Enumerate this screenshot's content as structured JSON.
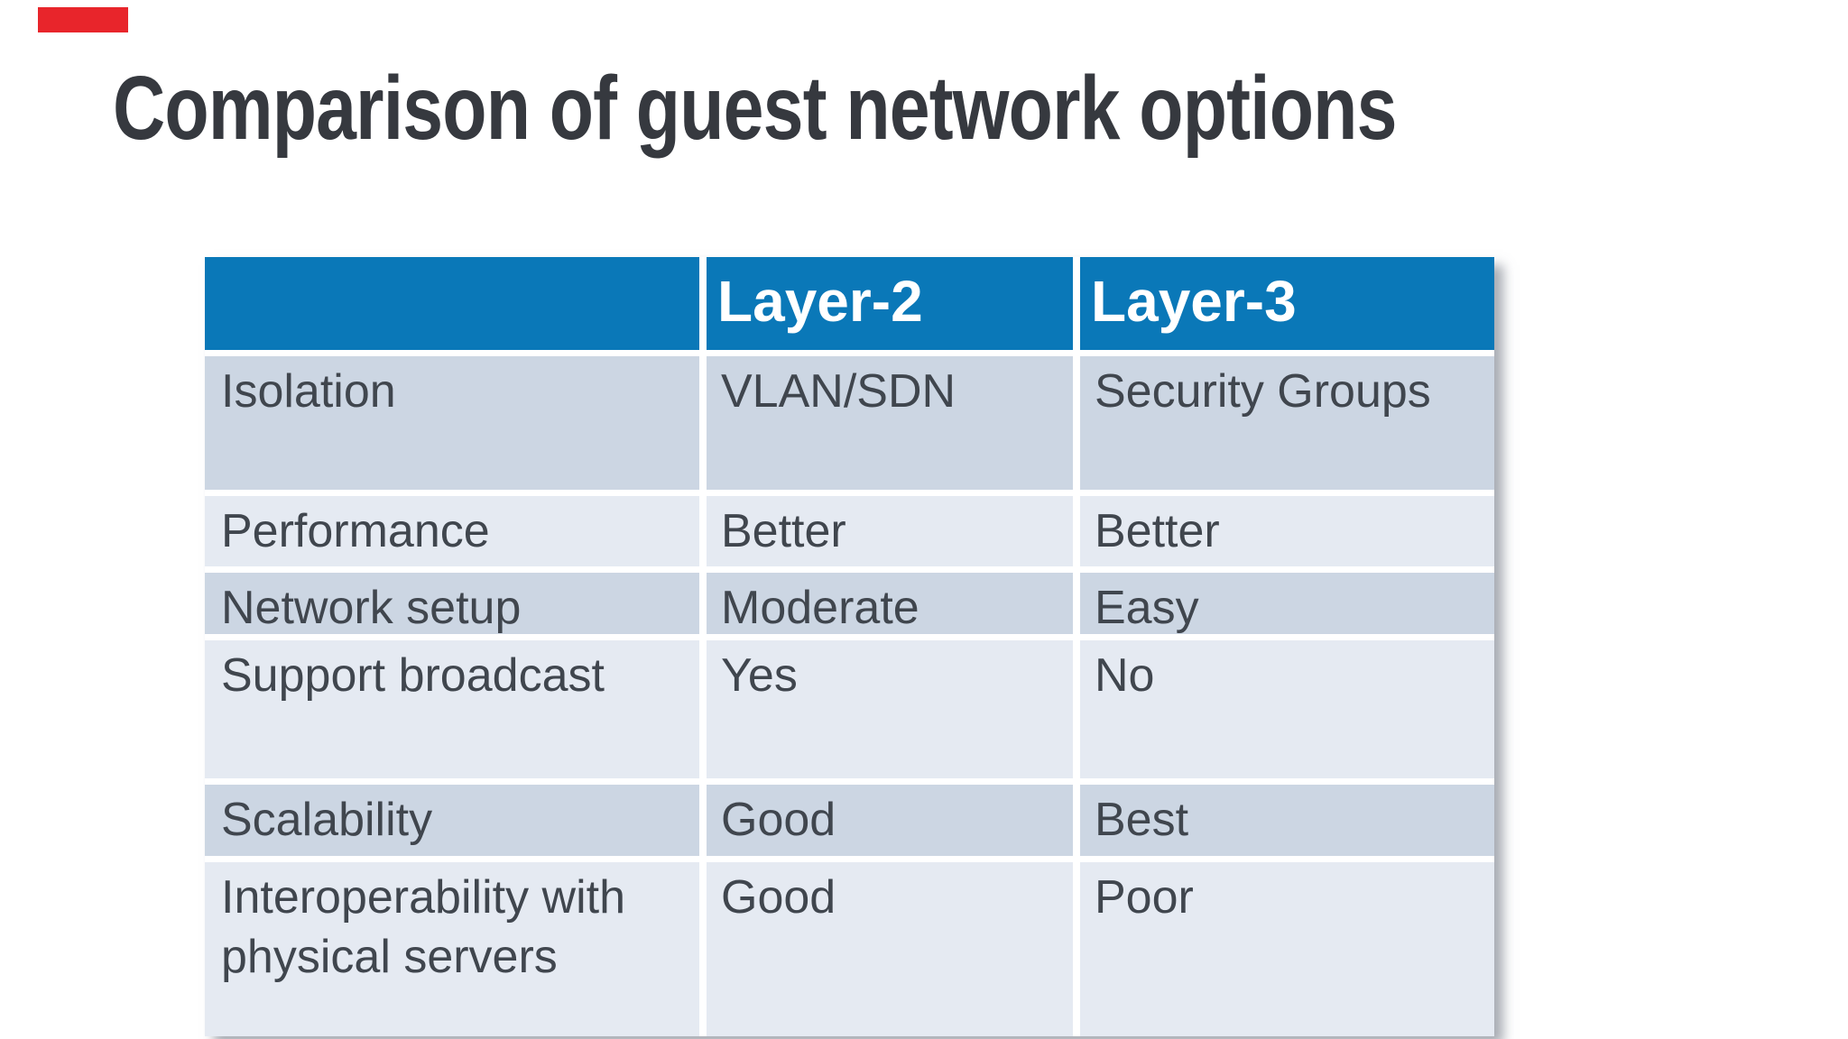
{
  "slide": {
    "title": "Comparison of guest network options"
  },
  "colors": {
    "background": "#ffffff",
    "title_text": "#36393f",
    "header_bg": "#0a78b8",
    "header_text": "#ffffff",
    "row_dark": "#ccd6e3",
    "row_light": "#e5eaf2",
    "body_text": "#40464e",
    "marker_red": "#e8252b"
  },
  "table": {
    "header": {
      "columns": [
        "",
        "Layer-2",
        "Layer-3"
      ]
    },
    "rows": [
      {
        "band": "dark",
        "label": "Isolation",
        "layer2": "VLAN/SDN",
        "layer3": "Security Groups"
      },
      {
        "band": "light",
        "label": "Performance",
        "layer2": "Better",
        "layer3": "Better"
      },
      {
        "band": "dark",
        "label": "Network setup",
        "layer2": "Moderate",
        "layer3": "Easy"
      },
      {
        "band": "light",
        "label": "Support broadcast",
        "layer2": "Yes",
        "layer3": "No"
      },
      {
        "band": "dark",
        "label": "Scalability",
        "layer2": "Good",
        "layer3": "Best"
      },
      {
        "band": "light",
        "label": "Interoperability with physical servers",
        "layer2": "Good",
        "layer3": "Poor"
      }
    ]
  }
}
